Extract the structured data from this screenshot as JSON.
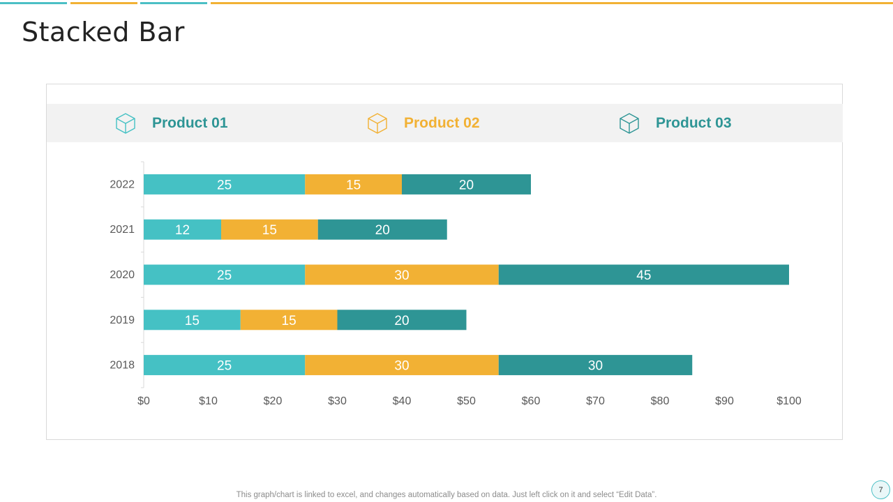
{
  "page": {
    "title": "Stacked Bar",
    "footer_note": "This graph/chart is linked to excel, and changes automatically based on data. Just left click on it and select “Edit Data”.",
    "page_number": "7"
  },
  "colors": {
    "teal_light": "#45c1c4",
    "gold": "#f2b134",
    "teal_dark": "#2e9595",
    "accent_bar_blue": "#4bbfc5",
    "accent_bar_gold": "#f2b134"
  },
  "legend": [
    {
      "label": "Product 01",
      "icon": "cube-icon",
      "color": "#2e9595",
      "icon_color": "#45c1c4"
    },
    {
      "label": "Product 02",
      "icon": "cube-icon",
      "color": "#f2b134",
      "icon_color": "#f2b134"
    },
    {
      "label": "Product 03",
      "icon": "cube-icon",
      "color": "#2e9595",
      "icon_color": "#2e9595"
    }
  ],
  "chart_data": {
    "type": "bar",
    "orientation": "horizontal",
    "stacked": true,
    "categories": [
      "2022",
      "2021",
      "2020",
      "2019",
      "2018"
    ],
    "series": [
      {
        "name": "Product 01",
        "values": [
          25,
          12,
          25,
          15,
          25
        ],
        "color": "#45c1c4"
      },
      {
        "name": "Product 02",
        "values": [
          15,
          15,
          30,
          15,
          30
        ],
        "color": "#f2b134"
      },
      {
        "name": "Product 03",
        "values": [
          20,
          20,
          45,
          20,
          30
        ],
        "color": "#2e9595"
      }
    ],
    "xlim": [
      0,
      100
    ],
    "xticks": [
      "$0",
      "$10",
      "$20",
      "$30",
      "$40",
      "$50",
      "$60",
      "$70",
      "$80",
      "$90",
      "$100"
    ],
    "data_labels": true,
    "grid": false
  }
}
